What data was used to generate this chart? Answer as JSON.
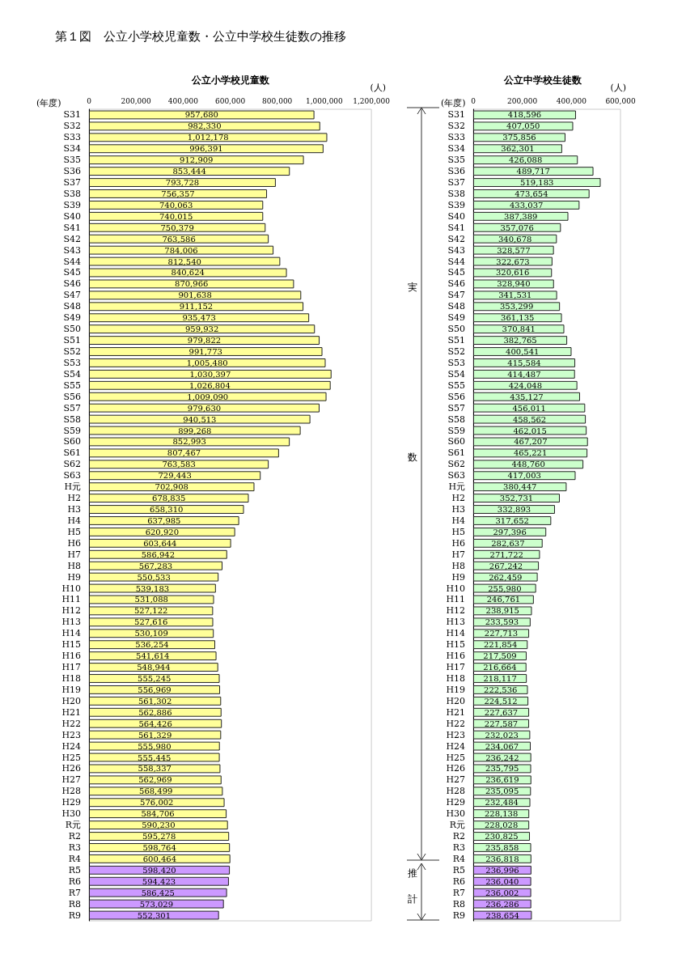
{
  "chart_data": [
    {
      "type": "bar",
      "orientation": "horizontal",
      "title": "第１図　公立小学校児童数・公立中学校生徒数の推移",
      "subtitle": "公立小学校児童数",
      "xlabel": "(人)",
      "ylabel": "(年度)",
      "categories": [
        "S31",
        "S32",
        "S33",
        "S34",
        "S35",
        "S36",
        "S37",
        "S38",
        "S39",
        "S40",
        "S41",
        "S42",
        "S43",
        "S44",
        "S45",
        "S46",
        "S47",
        "S48",
        "S49",
        "S50",
        "S51",
        "S52",
        "S53",
        "S54",
        "S55",
        "S56",
        "S57",
        "S58",
        "S59",
        "S60",
        "S61",
        "S62",
        "S63",
        "H元",
        "H2",
        "H3",
        "H4",
        "H5",
        "H6",
        "H7",
        "H8",
        "H9",
        "H10",
        "H11",
        "H12",
        "H13",
        "H14",
        "H15",
        "H16",
        "H17",
        "H18",
        "H19",
        "H20",
        "H21",
        "H22",
        "H23",
        "H24",
        "H25",
        "H26",
        "H27",
        "H28",
        "H29",
        "H30",
        "R元",
        "R2",
        "R3",
        "R4",
        "R5",
        "R6",
        "R7",
        "R8",
        "R9"
      ],
      "values": [
        957680,
        982330,
        1012178,
        996391,
        912909,
        853444,
        793728,
        756357,
        740063,
        740015,
        750379,
        763586,
        784006,
        812540,
        840624,
        870966,
        901638,
        911152,
        935473,
        959932,
        979822,
        991773,
        1005480,
        1030397,
        1026804,
        1009090,
        979630,
        940513,
        899268,
        852993,
        807467,
        763583,
        729443,
        702908,
        678835,
        658310,
        637985,
        620920,
        603644,
        586942,
        567283,
        550533,
        539183,
        531088,
        527122,
        527616,
        530109,
        536254,
        541614,
        548944,
        555245,
        556969,
        561302,
        562886,
        564426,
        561329,
        555980,
        555445,
        558337,
        562969,
        568499,
        576002,
        584706,
        590230,
        595278,
        598764,
        600464,
        598420,
        594423,
        586425,
        573029,
        552301
      ],
      "colors": [
        "#ffff99",
        "#ffff99",
        "#ffff99",
        "#ffff99",
        "#ffff99",
        "#ffff99",
        "#ffff99",
        "#ffff99",
        "#ffff99",
        "#ffff99",
        "#ffff99",
        "#ffff99",
        "#ffff99",
        "#ffff99",
        "#ffff99",
        "#ffff99",
        "#ffff99",
        "#ffff99",
        "#ffff99",
        "#ffff99",
        "#ffff99",
        "#ffff99",
        "#ffff99",
        "#ffff99",
        "#ffff99",
        "#ffff99",
        "#ffff99",
        "#ffff99",
        "#ffff99",
        "#ffff99",
        "#ffff99",
        "#ffff99",
        "#ffff99",
        "#ffff99",
        "#ffff99",
        "#ffff99",
        "#ffff99",
        "#ffff99",
        "#ffff99",
        "#ffff99",
        "#ffff99",
        "#ffff99",
        "#ffff99",
        "#ffff99",
        "#ffff99",
        "#ffff99",
        "#ffff99",
        "#ffff99",
        "#ffff99",
        "#ffff99",
        "#ffff99",
        "#ffff99",
        "#ffff99",
        "#ffff99",
        "#ffff99",
        "#ffff99",
        "#ffff99",
        "#ffff99",
        "#ffff99",
        "#ffff99",
        "#ffff99",
        "#ffff99",
        "#ffff99",
        "#ffff99",
        "#ffff99",
        "#ffff99",
        "#ffff99",
        "#cc99ff",
        "#cc99ff",
        "#cc99ff",
        "#cc99ff",
        "#cc99ff"
      ],
      "value_labels": [
        "957,680",
        "982,330",
        "1,012,178",
        "996,391",
        "912,909",
        "853,444",
        "793,728",
        "756,357",
        "740,063",
        "740,015",
        "750,379",
        "763,586",
        "784,006",
        "812,540",
        "840,624",
        "870,966",
        "901,638",
        "911,152",
        "935,473",
        "959,932",
        "979,822",
        "991,773",
        "1,005,480",
        "1,030,397",
        "1,026,804",
        "1,009,090",
        "979,630",
        "940,513",
        "899,268",
        "852,993",
        "807,467",
        "763,583",
        "729,443",
        "702,908",
        "678,835",
        "658,310",
        "637,985",
        "620,920",
        "603,644",
        "586,942",
        "567,283",
        "550,533",
        "539,183",
        "531,088",
        "527,122",
        "527,616",
        "530,109",
        "536,254",
        "541,614",
        "548,944",
        "555,245",
        "556,969",
        "561,302",
        "562,886",
        "564,426",
        "561,329",
        "555,980",
        "555,445",
        "558,337",
        "562,969",
        "568,499",
        "576,002",
        "584,706",
        "590,230",
        "595,278",
        "598,764",
        "600,464",
        "598,420",
        "594,423",
        "586,425",
        "573,029",
        "552,301"
      ],
      "xlim": [
        0,
        1200000
      ],
      "xticks": [
        {
          "value": 0,
          "label": "0"
        },
        {
          "value": 200000,
          "label": "200,000"
        },
        {
          "value": 400000,
          "label": "400,000"
        },
        {
          "value": 600000,
          "label": "600,000"
        },
        {
          "value": 800000,
          "label": "800,000"
        },
        {
          "value": 1000000,
          "label": "1,000,000"
        },
        {
          "value": 1200000,
          "label": "1,200,000"
        }
      ]
    },
    {
      "type": "bar",
      "orientation": "horizontal",
      "title": "公立中学校生徒数",
      "xlabel": "(人)",
      "ylabel": "(年度)",
      "categories": [
        "S31",
        "S32",
        "S33",
        "S34",
        "S35",
        "S36",
        "S37",
        "S38",
        "S39",
        "S40",
        "S41",
        "S42",
        "S43",
        "S44",
        "S45",
        "S46",
        "S47",
        "S48",
        "S49",
        "S50",
        "S51",
        "S52",
        "S53",
        "S54",
        "S55",
        "S56",
        "S57",
        "S58",
        "S59",
        "S60",
        "S61",
        "S62",
        "S63",
        "H元",
        "H2",
        "H3",
        "H4",
        "H5",
        "H6",
        "H7",
        "H8",
        "H9",
        "H10",
        "H11",
        "H12",
        "H13",
        "H14",
        "H15",
        "H16",
        "H17",
        "H18",
        "H19",
        "H20",
        "H21",
        "H22",
        "H23",
        "H24",
        "H25",
        "H26",
        "H27",
        "H28",
        "H29",
        "H30",
        "R元",
        "R2",
        "R3",
        "R4",
        "R5",
        "R6",
        "R7",
        "R8",
        "R9"
      ],
      "values": [
        418596,
        407050,
        375856,
        362301,
        426088,
        489717,
        519183,
        473654,
        433037,
        387389,
        357076,
        340678,
        328577,
        322673,
        320616,
        328940,
        341531,
        353299,
        361135,
        370841,
        382765,
        400541,
        415584,
        414487,
        424048,
        435127,
        456011,
        458562,
        462015,
        467207,
        465221,
        448760,
        417003,
        380447,
        352731,
        332893,
        317652,
        297396,
        282637,
        271722,
        267242,
        262459,
        255980,
        246761,
        238915,
        233593,
        227713,
        221854,
        217509,
        216664,
        218117,
        222536,
        224512,
        227637,
        227587,
        232023,
        234067,
        236242,
        235795,
        236619,
        235095,
        232484,
        228138,
        228028,
        230825,
        235858,
        236818,
        236996,
        236040,
        236002,
        236286,
        238654
      ],
      "colors": [
        "#ccffcc",
        "#ccffcc",
        "#ccffcc",
        "#ccffcc",
        "#ccffcc",
        "#ccffcc",
        "#ccffcc",
        "#ccffcc",
        "#ccffcc",
        "#ccffcc",
        "#ccffcc",
        "#ccffcc",
        "#ccffcc",
        "#ccffcc",
        "#ccffcc",
        "#ccffcc",
        "#ccffcc",
        "#ccffcc",
        "#ccffcc",
        "#ccffcc",
        "#ccffcc",
        "#ccffcc",
        "#ccffcc",
        "#ccffcc",
        "#ccffcc",
        "#ccffcc",
        "#ccffcc",
        "#ccffcc",
        "#ccffcc",
        "#ccffcc",
        "#ccffcc",
        "#ccffcc",
        "#ccffcc",
        "#ccffcc",
        "#ccffcc",
        "#ccffcc",
        "#ccffcc",
        "#ccffcc",
        "#ccffcc",
        "#ccffcc",
        "#ccffcc",
        "#ccffcc",
        "#ccffcc",
        "#ccffcc",
        "#ccffcc",
        "#ccffcc",
        "#ccffcc",
        "#ccffcc",
        "#ccffcc",
        "#ccffcc",
        "#ccffcc",
        "#ccffcc",
        "#ccffcc",
        "#ccffcc",
        "#ccffcc",
        "#ccffcc",
        "#ccffcc",
        "#ccffcc",
        "#ccffcc",
        "#ccffcc",
        "#ccffcc",
        "#ccffcc",
        "#ccffcc",
        "#ccffcc",
        "#ccffcc",
        "#ccffcc",
        "#ccffcc",
        "#cc99ff",
        "#cc99ff",
        "#cc99ff",
        "#cc99ff",
        "#cc99ff"
      ],
      "value_labels": [
        "418,596",
        "407,050",
        "375,856",
        "362,301",
        "426,088",
        "489,717",
        "519,183",
        "473,654",
        "433,037",
        "387,389",
        "357,076",
        "340,678",
        "328,577",
        "322,673",
        "320,616",
        "328,940",
        "341,531",
        "353,299",
        "361,135",
        "370,841",
        "382,765",
        "400,541",
        "415,584",
        "414,487",
        "424,048",
        "435,127",
        "456,011",
        "458,562",
        "462,015",
        "467,207",
        "465,221",
        "448,760",
        "417,003",
        "380,447",
        "352,731",
        "332,893",
        "317,652",
        "297,396",
        "282,637",
        "271,722",
        "267,242",
        "262,459",
        "255,980",
        "246,761",
        "238,915",
        "233,593",
        "227,713",
        "221,854",
        "217,509",
        "216,664",
        "218,117",
        "222,536",
        "224,512",
        "227,637",
        "227,587",
        "232,023",
        "234,067",
        "236,242",
        "235,795",
        "236,619",
        "235,095",
        "232,484",
        "228,138",
        "228,028",
        "230,825",
        "235,858",
        "236,818",
        "236,996",
        "236,040",
        "236,002",
        "236,286",
        "238,654"
      ],
      "xlim": [
        0,
        600000
      ],
      "xticks": [
        {
          "value": 0,
          "label": "0"
        },
        {
          "value": 200000,
          "label": "200,000"
        },
        {
          "value": 400000,
          "label": "400,000"
        },
        {
          "value": 600000,
          "label": "600,000"
        }
      ],
      "annotations": [
        "実数",
        "推計"
      ]
    }
  ]
}
